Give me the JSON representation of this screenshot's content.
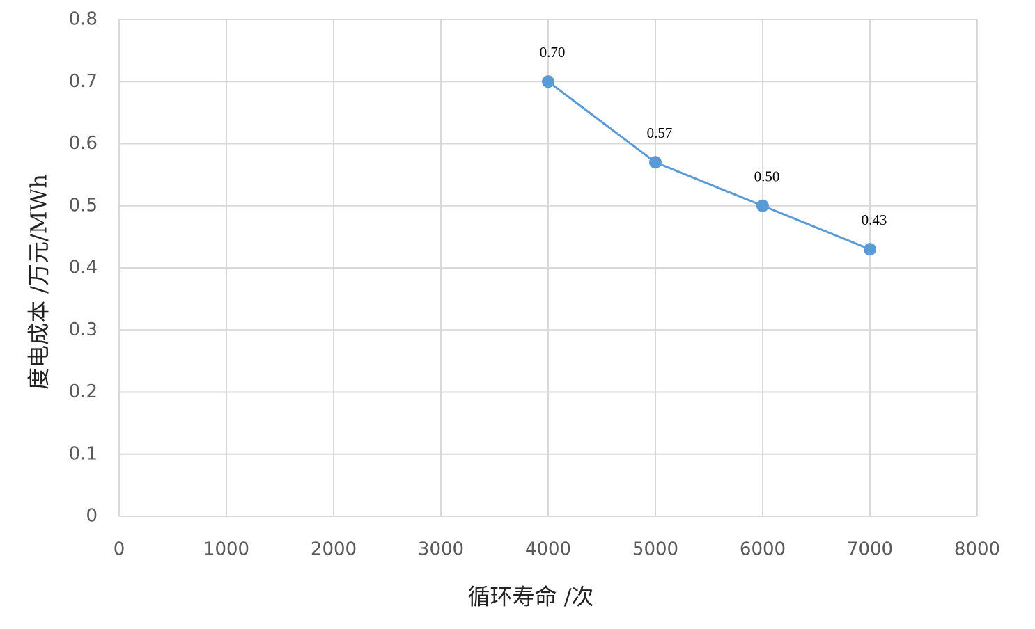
{
  "chart_data": {
    "type": "line",
    "x_label": "循环寿命 /次",
    "y_label": "度电成本 /万元/MWh",
    "x": [
      4000,
      5000,
      6000,
      7000
    ],
    "series": [
      {
        "color": "#5b9bd5",
        "values": [
          0.7,
          0.57,
          0.5,
          0.43
        ],
        "value_labels": [
          "0.70",
          "0.57",
          "0.50",
          "0.43"
        ]
      }
    ],
    "xlim": [
      0,
      8000
    ],
    "xticks": [
      0,
      1000,
      2000,
      3000,
      4000,
      5000,
      6000,
      7000,
      8000
    ],
    "ylim": [
      0,
      0.8
    ],
    "yticks": [
      0,
      0.1,
      0.2,
      0.3,
      0.4,
      0.5,
      0.6,
      0.7,
      0.8
    ],
    "grid": true
  }
}
